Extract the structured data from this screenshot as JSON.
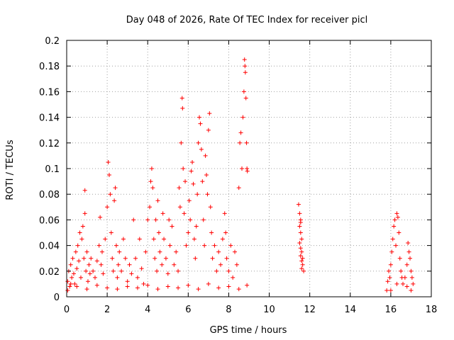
{
  "chart_data": {
    "type": "scatter",
    "title": "Day 048 of 2026, Rate Of TEC Index for receiver picl",
    "xlabel": "GPS time / hours",
    "ylabel": "ROTI / TECUs",
    "xlim": [
      0,
      18
    ],
    "ylim": [
      0,
      0.2
    ],
    "xticks": [
      0,
      2,
      4,
      6,
      8,
      10,
      12,
      14,
      16,
      18
    ],
    "xtick_labels": [
      "0",
      "2",
      "4",
      "6",
      "8",
      "10",
      "12",
      "14",
      "16",
      "18"
    ],
    "yticks": [
      0,
      0.02,
      0.04,
      0.06,
      0.08,
      0.1,
      0.12,
      0.14,
      0.16,
      0.18,
      0.2
    ],
    "ytick_labels": [
      "0",
      "0.02",
      "0.04",
      "0.06",
      "0.08",
      "0.1",
      "0.12",
      "0.14",
      "0.16",
      "0.18",
      "0.2"
    ],
    "grid": true,
    "marker": "+",
    "color": "#ff0000",
    "series": [
      {
        "name": "ROTI",
        "points": [
          [
            0.05,
            0.012
          ],
          [
            0.1,
            0.02
          ],
          [
            0.15,
            0.008
          ],
          [
            0.2,
            0.025
          ],
          [
            0.25,
            0.015
          ],
          [
            0.3,
            0.03
          ],
          [
            0.35,
            0.018
          ],
          [
            0.4,
            0.01
          ],
          [
            0.45,
            0.035
          ],
          [
            0.5,
            0.022
          ],
          [
            0.55,
            0.04
          ],
          [
            0.6,
            0.028
          ],
          [
            0.65,
            0.05
          ],
          [
            0.7,
            0.015
          ],
          [
            0.75,
            0.045
          ],
          [
            0.8,
            0.055
          ],
          [
            0.85,
            0.03
          ],
          [
            0.9,
            0.083
          ],
          [
            0.9,
            0.065
          ],
          [
            0.95,
            0.02
          ],
          [
            1.0,
            0.035
          ],
          [
            1.05,
            0.012
          ],
          [
            1.1,
            0.025
          ],
          [
            1.15,
            0.018
          ],
          [
            1.2,
            0.03
          ],
          [
            1.3,
            0.02
          ],
          [
            1.4,
            0.015
          ],
          [
            1.5,
            0.028
          ],
          [
            1.6,
            0.04
          ],
          [
            1.65,
            0.062
          ],
          [
            1.7,
            0.025
          ],
          [
            1.75,
            0.035
          ],
          [
            1.8,
            0.018
          ],
          [
            1.9,
            0.045
          ],
          [
            2.0,
            0.07
          ],
          [
            2.05,
            0.105
          ],
          [
            2.1,
            0.095
          ],
          [
            2.15,
            0.08
          ],
          [
            2.2,
            0.05
          ],
          [
            2.25,
            0.03
          ],
          [
            2.3,
            0.02
          ],
          [
            2.35,
            0.075
          ],
          [
            2.4,
            0.085
          ],
          [
            2.45,
            0.04
          ],
          [
            2.5,
            0.015
          ],
          [
            2.55,
            0.025
          ],
          [
            2.6,
            0.035
          ],
          [
            2.7,
            0.02
          ],
          [
            2.8,
            0.045
          ],
          [
            2.9,
            0.03
          ],
          [
            3.0,
            0.012
          ],
          [
            3.1,
            0.025
          ],
          [
            3.2,
            0.018
          ],
          [
            3.3,
            0.06
          ],
          [
            3.4,
            0.03
          ],
          [
            3.5,
            0.015
          ],
          [
            3.6,
            0.045
          ],
          [
            3.7,
            0.022
          ],
          [
            3.8,
            0.01
          ],
          [
            3.9,
            0.035
          ],
          [
            4.0,
            0.06
          ],
          [
            4.1,
            0.07
          ],
          [
            4.15,
            0.09
          ],
          [
            4.2,
            0.1
          ],
          [
            4.25,
            0.085
          ],
          [
            4.3,
            0.045
          ],
          [
            4.35,
            0.03
          ],
          [
            4.4,
            0.06
          ],
          [
            4.45,
            0.02
          ],
          [
            4.5,
            0.075
          ],
          [
            4.55,
            0.05
          ],
          [
            4.6,
            0.035
          ],
          [
            4.7,
            0.025
          ],
          [
            4.75,
            0.065
          ],
          [
            4.8,
            0.045
          ],
          [
            4.9,
            0.03
          ],
          [
            5.0,
            0.018
          ],
          [
            5.05,
            0.06
          ],
          [
            5.1,
            0.04
          ],
          [
            5.2,
            0.055
          ],
          [
            5.3,
            0.025
          ],
          [
            5.4,
            0.035
          ],
          [
            5.5,
            0.02
          ],
          [
            5.55,
            0.085
          ],
          [
            5.6,
            0.07
          ],
          [
            5.65,
            0.12
          ],
          [
            5.7,
            0.155
          ],
          [
            5.72,
            0.147
          ],
          [
            5.75,
            0.1
          ],
          [
            5.8,
            0.065
          ],
          [
            5.85,
            0.09
          ],
          [
            5.9,
            0.04
          ],
          [
            6.0,
            0.05
          ],
          [
            6.05,
            0.075
          ],
          [
            6.1,
            0.06
          ],
          [
            6.15,
            0.098
          ],
          [
            6.2,
            0.105
          ],
          [
            6.25,
            0.088
          ],
          [
            6.3,
            0.045
          ],
          [
            6.35,
            0.03
          ],
          [
            6.4,
            0.055
          ],
          [
            6.45,
            0.08
          ],
          [
            6.5,
            0.12
          ],
          [
            6.55,
            0.14
          ],
          [
            6.6,
            0.135
          ],
          [
            6.65,
            0.115
          ],
          [
            6.7,
            0.09
          ],
          [
            6.75,
            0.06
          ],
          [
            6.8,
            0.04
          ],
          [
            6.85,
            0.11
          ],
          [
            6.9,
            0.095
          ],
          [
            6.95,
            0.08
          ],
          [
            7.0,
            0.13
          ],
          [
            7.05,
            0.143
          ],
          [
            7.1,
            0.07
          ],
          [
            7.15,
            0.05
          ],
          [
            7.2,
            0.03
          ],
          [
            7.3,
            0.04
          ],
          [
            7.4,
            0.02
          ],
          [
            7.5,
            0.035
          ],
          [
            7.6,
            0.025
          ],
          [
            7.7,
            0.045
          ],
          [
            7.8,
            0.065
          ],
          [
            7.85,
            0.05
          ],
          [
            7.9,
            0.03
          ],
          [
            8.0,
            0.02
          ],
          [
            8.1,
            0.04
          ],
          [
            8.2,
            0.015
          ],
          [
            8.3,
            0.035
          ],
          [
            8.4,
            0.025
          ],
          [
            8.5,
            0.085
          ],
          [
            8.55,
            0.12
          ],
          [
            8.6,
            0.128
          ],
          [
            8.65,
            0.1
          ],
          [
            8.7,
            0.14
          ],
          [
            8.75,
            0.16
          ],
          [
            8.78,
            0.185
          ],
          [
            8.8,
            0.18
          ],
          [
            8.82,
            0.175
          ],
          [
            8.85,
            0.155
          ],
          [
            8.88,
            0.12
          ],
          [
            8.9,
            0.1
          ],
          [
            8.92,
            0.098
          ],
          [
            0.05,
            0.005
          ],
          [
            0.2,
            0.01
          ],
          [
            0.5,
            0.008
          ],
          [
            1.0,
            0.006
          ],
          [
            1.5,
            0.009
          ],
          [
            2.0,
            0.007
          ],
          [
            2.5,
            0.006
          ],
          [
            3.0,
            0.008
          ],
          [
            3.5,
            0.007
          ],
          [
            4.0,
            0.009
          ],
          [
            4.5,
            0.006
          ],
          [
            5.0,
            0.008
          ],
          [
            5.5,
            0.007
          ],
          [
            6.0,
            0.009
          ],
          [
            6.5,
            0.006
          ],
          [
            7.0,
            0.01
          ],
          [
            7.5,
            0.007
          ],
          [
            8.0,
            0.008
          ],
          [
            8.5,
            0.006
          ],
          [
            8.9,
            0.009
          ],
          [
            11.45,
            0.072
          ],
          [
            11.5,
            0.065
          ],
          [
            11.55,
            0.06
          ],
          [
            11.5,
            0.055
          ],
          [
            11.55,
            0.05
          ],
          [
            11.6,
            0.045
          ],
          [
            11.5,
            0.042
          ],
          [
            11.55,
            0.038
          ],
          [
            11.6,
            0.035
          ],
          [
            11.55,
            0.032
          ],
          [
            11.6,
            0.028
          ],
          [
            11.65,
            0.025
          ],
          [
            11.6,
            0.022
          ],
          [
            11.7,
            0.02
          ],
          [
            11.65,
            0.03
          ],
          [
            11.55,
            0.058
          ],
          [
            15.8,
            0.005
          ],
          [
            15.85,
            0.012
          ],
          [
            15.9,
            0.02
          ],
          [
            15.95,
            0.015
          ],
          [
            16.0,
            0.025
          ],
          [
            16.05,
            0.035
          ],
          [
            16.1,
            0.045
          ],
          [
            16.15,
            0.055
          ],
          [
            16.2,
            0.06
          ],
          [
            16.25,
            0.04
          ],
          [
            16.3,
            0.065
          ],
          [
            16.35,
            0.062
          ],
          [
            16.4,
            0.05
          ],
          [
            16.45,
            0.03
          ],
          [
            16.5,
            0.02
          ],
          [
            16.55,
            0.015
          ],
          [
            16.6,
            0.01
          ],
          [
            16.7,
            0.015
          ],
          [
            16.8,
            0.025
          ],
          [
            16.85,
            0.042
          ],
          [
            16.9,
            0.035
          ],
          [
            16.95,
            0.03
          ],
          [
            17.0,
            0.02
          ],
          [
            17.05,
            0.015
          ],
          [
            17.1,
            0.01
          ],
          [
            16.0,
            0.005
          ],
          [
            16.3,
            0.01
          ],
          [
            16.8,
            0.008
          ],
          [
            17.0,
            0.005
          ]
        ]
      }
    ]
  }
}
